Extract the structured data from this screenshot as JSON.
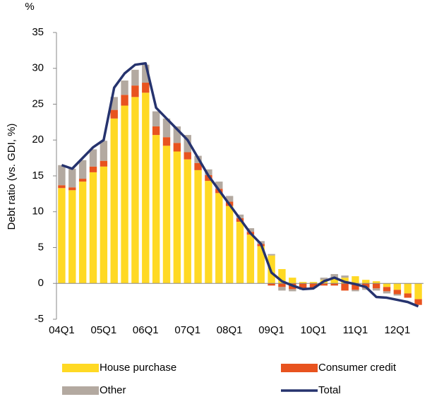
{
  "chart_data": {
    "type": "stacked-bar-line",
    "y_label": "Debt ratio (vs. GDI, %)",
    "unit": "%",
    "categories": [
      "04Q1",
      null,
      null,
      null,
      "05Q1",
      null,
      null,
      null,
      "06Q1",
      null,
      null,
      null,
      "07Q1",
      null,
      null,
      null,
      "08Q1",
      null,
      null,
      null,
      "09Q1",
      null,
      null,
      null,
      "10Q1",
      null,
      null,
      null,
      "11Q1",
      null,
      null,
      null,
      "12Q1",
      null,
      null
    ],
    "ylim": [
      -5,
      35
    ],
    "yticks": [
      -5,
      0,
      5,
      10,
      15,
      20,
      25,
      30,
      35
    ],
    "series": [
      {
        "name": "House purchase",
        "color": "#ffd924",
        "values": [
          13.3,
          13.0,
          14.2,
          15.5,
          16.3,
          23.0,
          24.8,
          26.0,
          26.6,
          20.7,
          19.2,
          18.4,
          17.3,
          15.8,
          14.3,
          12.6,
          10.8,
          8.6,
          6.8,
          5.2,
          3.9,
          2.0,
          0.8,
          0.2,
          0.2,
          0.5,
          0.7,
          0.8,
          1.0,
          0.5,
          0.3,
          -0.5,
          -0.9,
          -1.4,
          -2.2
        ]
      },
      {
        "name": "Consumer credit",
        "color": "#e8531f",
        "values": [
          0.4,
          0.4,
          0.4,
          0.8,
          0.8,
          1.2,
          1.5,
          1.6,
          1.4,
          1.2,
          1.2,
          1.2,
          1.0,
          1.0,
          0.8,
          0.6,
          0.6,
          0.5,
          0.4,
          0.3,
          -0.3,
          -0.5,
          -0.8,
          -0.7,
          -0.6,
          -0.3,
          -0.3,
          -1.0,
          -0.9,
          -0.6,
          -0.7,
          -0.6,
          -0.6,
          -0.6,
          -0.8
        ]
      },
      {
        "name": "Other",
        "color": "#b3a9a0",
        "values": [
          2.8,
          2.6,
          2.6,
          2.4,
          2.8,
          1.8,
          2.0,
          2.2,
          2.5,
          2.1,
          2.6,
          2.3,
          2.4,
          1.0,
          0.8,
          1.0,
          0.8,
          0.5,
          0.5,
          0.4,
          0.2,
          -0.5,
          -0.3,
          -0.2,
          0,
          0.3,
          0.6,
          0.3,
          -0.2,
          -0.3,
          -0.3,
          -0.3,
          -0.2,
          0,
          0
        ]
      },
      {
        "name": "Total",
        "color": "#26336e",
        "line": true,
        "values": [
          16.5,
          16.0,
          17.5,
          19.0,
          20.0,
          27.3,
          29.3,
          30.5,
          30.7,
          24.5,
          23.0,
          21.5,
          20.0,
          17.5,
          15.0,
          13.0,
          11.0,
          9.0,
          7.0,
          5.5,
          1.5,
          0.3,
          -0.3,
          -0.8,
          -0.7,
          0.3,
          0.8,
          0.2,
          -0.1,
          -0.5,
          -1.9,
          -2.0,
          -2.3,
          -2.6,
          -3.2
        ]
      }
    ]
  }
}
